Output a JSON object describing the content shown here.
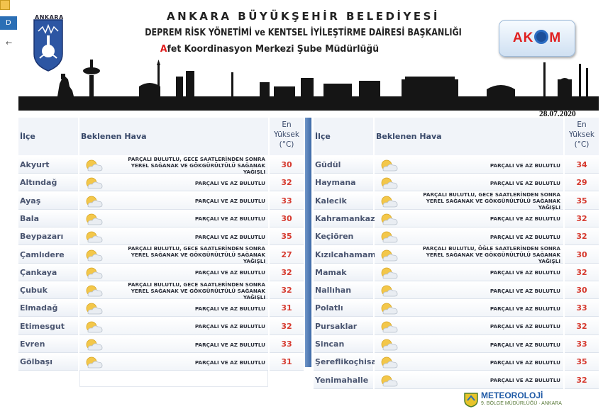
{
  "header": {
    "logo_text": "ANKARA",
    "title_line1": "ANKARA BÜYÜKŞEHİR BELEDİYESİ",
    "title_line2": "DEPREM RİSK YÖNETİMİ ve KENTSEL İYİLEŞTİRME DAİRESİ BAŞKANLIĞI",
    "title_line3_first": "A",
    "title_line3_rest": "fet Koordinasyon Merkezi Şube Müdürlüğü",
    "akom_left": "AK",
    "akom_right": "M"
  },
  "date": "28.07.2020",
  "table": {
    "col_ilce": "İlçe",
    "col_hava": "Beklenen Hava",
    "col_max_line1": "En",
    "col_max_line2": "Yüksek",
    "col_max_line3": "(°C)",
    "left_rows": [
      {
        "ilce": "Akyurt",
        "hava": "PARÇALI BULUTLU, GECE SAATLERİNDEN SONRA YEREL SAĞANAK VE GÖKGÜRÜLTÜLÜ SAĞANAK YAĞIŞLI",
        "temp": "30"
      },
      {
        "ilce": "Altındağ",
        "hava": "PARÇALI VE AZ BULUTLU",
        "temp": "32"
      },
      {
        "ilce": "Ayaş",
        "hava": "PARÇALI VE AZ BULUTLU",
        "temp": "33"
      },
      {
        "ilce": "Bala",
        "hava": "PARÇALI VE AZ BULUTLU",
        "temp": "30"
      },
      {
        "ilce": "Beypazarı",
        "hava": "PARÇALI VE AZ BULUTLU",
        "temp": "35"
      },
      {
        "ilce": "Çamlıdere",
        "hava": "PARÇALI BULUTLU, GECE SAATLERİNDEN SONRA YEREL SAĞANAK VE GÖKGÜRÜLTÜLÜ SAĞANAK YAĞIŞLI",
        "temp": "27"
      },
      {
        "ilce": "Çankaya",
        "hava": "PARÇALI VE AZ BULUTLU",
        "temp": "32"
      },
      {
        "ilce": "Çubuk",
        "hava": "PARÇALI BULUTLU, GECE SAATLERİNDEN SONRA YEREL SAĞANAK VE GÖKGÜRÜLTÜLÜ SAĞANAK YAĞIŞLI",
        "temp": "32"
      },
      {
        "ilce": "Elmadağ",
        "hava": "PARÇALI VE AZ BULUTLU",
        "temp": "31"
      },
      {
        "ilce": "Etimesgut",
        "hava": "PARÇALI VE AZ BULUTLU",
        "temp": "32"
      },
      {
        "ilce": "Evren",
        "hava": "PARÇALI VE AZ BULUTLU",
        "temp": "33"
      },
      {
        "ilce": "Gölbaşı",
        "hava": "PARÇALI VE AZ BULUTLU",
        "temp": "31"
      }
    ],
    "right_rows": [
      {
        "ilce": "Güdül",
        "hava": "PARÇALI VE AZ BULUTLU",
        "temp": "34"
      },
      {
        "ilce": "Haymana",
        "hava": "PARÇALI VE AZ BULUTLU",
        "temp": "29"
      },
      {
        "ilce": "Kalecik",
        "hava": "PARÇALI BULUTLU, GECE SAATLERİNDEN SONRA YEREL SAĞANAK VE GÖKGÜRÜLTÜLÜ SAĞANAK YAĞIŞLI",
        "temp": "35"
      },
      {
        "ilce": "Kahramankazan",
        "hava": "PARÇALI VE AZ BULUTLU",
        "temp": "32"
      },
      {
        "ilce": "Keçiören",
        "hava": "PARÇALI VE AZ BULUTLU",
        "temp": "32"
      },
      {
        "ilce": "Kızılcahamam",
        "hava": "PARÇALI BULUTLU, ÖĞLE SAATLERİNDEN SONRA YEREL SAĞANAK VE GÖKGÜRÜLTÜLÜ SAĞANAK YAĞIŞLI",
        "temp": "30"
      },
      {
        "ilce": "Mamak",
        "hava": "PARÇALI VE AZ BULUTLU",
        "temp": "32"
      },
      {
        "ilce": "Nallıhan",
        "hava": "PARÇALI VE AZ BULUTLU",
        "temp": "30"
      },
      {
        "ilce": "Polatlı",
        "hava": "PARÇALI VE AZ BULUTLU",
        "temp": "33"
      },
      {
        "ilce": "Pursaklar",
        "hava": "PARÇALI VE AZ BULUTLU",
        "temp": "32"
      },
      {
        "ilce": "Sincan",
        "hava": "PARÇALI VE AZ BULUTLU",
        "temp": "33"
      },
      {
        "ilce": "Şereflikoçhisar",
        "hava": "PARÇALI VE AZ BULUTLU",
        "temp": "35"
      },
      {
        "ilce": "Yenimahalle",
        "hava": "PARÇALI VE AZ BULUTLU",
        "temp": "32"
      }
    ]
  },
  "footer": {
    "brand": "METEOROLOJİ",
    "sub": "9. BÖLGE MÜDÜRLÜĞÜ · ANKARA"
  },
  "browser": {
    "tab_letter": "D",
    "back_icon": "arrow-left-icon"
  },
  "colors": {
    "temp": "#d63a2f",
    "divider": "#4a76b0",
    "akom_red": "#e02020"
  }
}
